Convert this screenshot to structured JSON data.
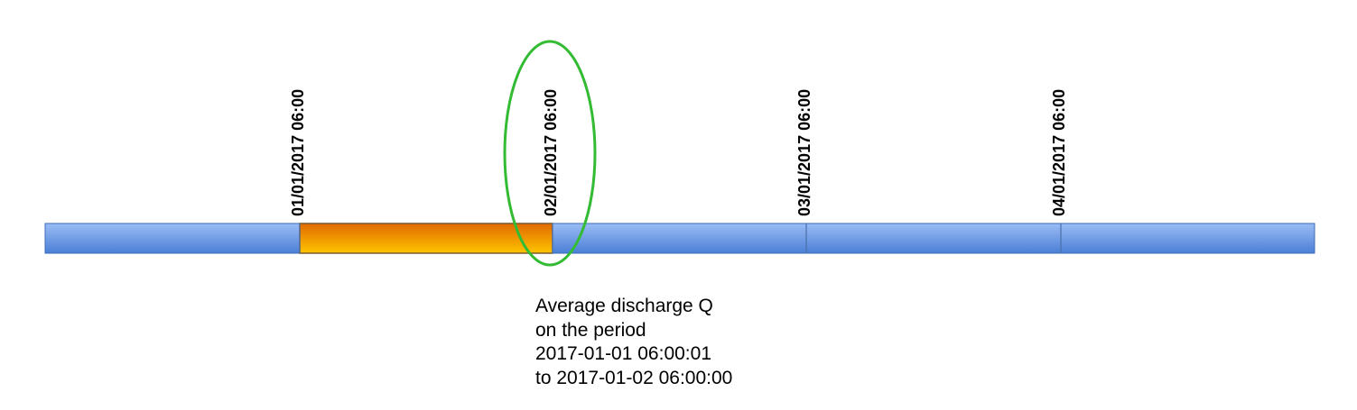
{
  "timeline": {
    "ticks": [
      {
        "label": "01/01/2017 06:00"
      },
      {
        "label": "02/01/2017 06:00"
      },
      {
        "label": "03/01/2017 06:00"
      },
      {
        "label": "04/01/2017 06:00"
      }
    ],
    "highlighted_segment_index": 1,
    "circled_tick_index": 1,
    "colors": {
      "bar_top": "#9bbcf5",
      "bar_bottom": "#4a7fd6",
      "bar_border": "#3b6bb8",
      "highlight_top": "#e06a00",
      "highlight_bottom": "#ffc400",
      "circle": "#33bb33"
    }
  },
  "caption": {
    "lines": [
      "Average discharge Q",
      "on the period",
      "2017-01-01 06:00:01",
      "to 2017-01-02 06:00:00"
    ]
  }
}
